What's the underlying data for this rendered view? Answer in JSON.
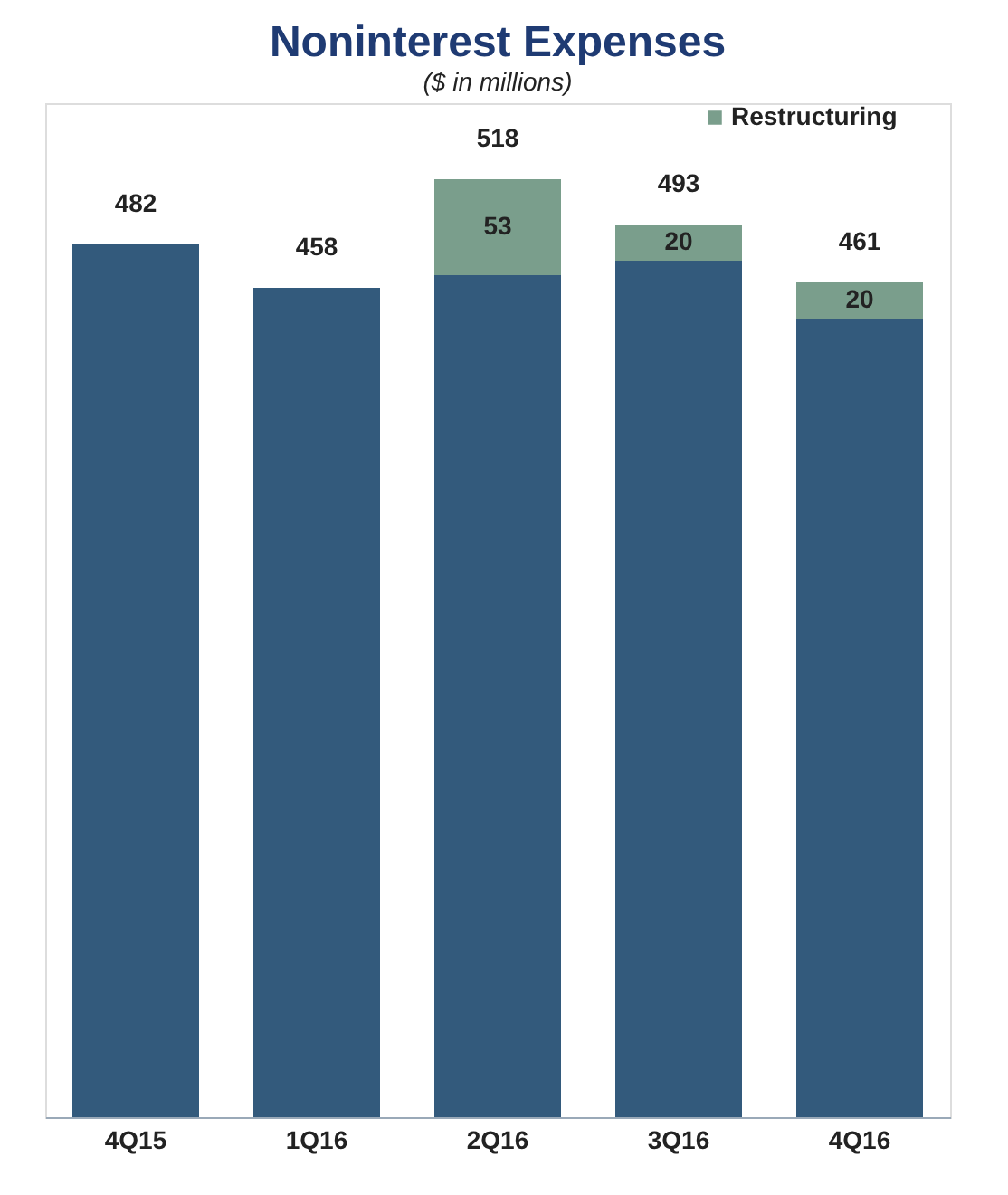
{
  "chart_data": {
    "type": "bar",
    "title": "Noninterest Expenses",
    "subtitle": "($ in millions)",
    "categories": [
      "4Q15",
      "1Q16",
      "2Q16",
      "3Q16",
      "4Q16"
    ],
    "series": [
      {
        "color": "#335a7c",
        "values": [
          482,
          458,
          465,
          473,
          441
        ]
      },
      {
        "name": "Restructuring",
        "color": "#7a9e8c",
        "values": [
          null,
          null,
          53,
          20,
          20
        ],
        "value_labels": [
          null,
          null,
          "53",
          "20",
          "20"
        ]
      }
    ],
    "stacked": true,
    "totals": [
      "482",
      "458",
      "518",
      "493",
      "461"
    ],
    "ylim": [
      0,
      560
    ],
    "tick_labels": "x",
    "grid": false,
    "legend": "top right"
  }
}
